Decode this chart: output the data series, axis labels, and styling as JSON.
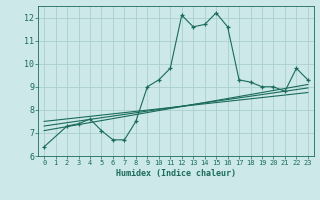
{
  "title": "",
  "xlabel": "Humidex (Indice chaleur)",
  "bg_color": "#cce8e8",
  "grid_color": "#aacfcf",
  "line_color": "#1a6b5a",
  "xlim": [
    -0.5,
    23.5
  ],
  "ylim": [
    6,
    12.5
  ],
  "yticks": [
    6,
    7,
    8,
    9,
    10,
    11,
    12
  ],
  "xticks": [
    0,
    1,
    2,
    3,
    4,
    5,
    6,
    7,
    8,
    9,
    10,
    11,
    12,
    13,
    14,
    15,
    16,
    17,
    18,
    19,
    20,
    21,
    22,
    23
  ],
  "series1_x": [
    0,
    2,
    3,
    4,
    5,
    6,
    7,
    8,
    9,
    10,
    11,
    12,
    13,
    14,
    15,
    16,
    17,
    18,
    19,
    20,
    21,
    22,
    23
  ],
  "series1_y": [
    6.4,
    7.3,
    7.4,
    7.6,
    7.1,
    6.7,
    6.7,
    7.5,
    9.0,
    9.3,
    9.8,
    12.1,
    11.6,
    11.7,
    12.2,
    11.6,
    9.3,
    9.2,
    9.0,
    9.0,
    8.8,
    9.8,
    9.3
  ],
  "series2_x": [
    0,
    23
  ],
  "series2_y": [
    7.1,
    9.1
  ],
  "series3_x": [
    0,
    23
  ],
  "series3_y": [
    7.3,
    8.95
  ],
  "series4_x": [
    0,
    23
  ],
  "series4_y": [
    7.5,
    8.75
  ]
}
